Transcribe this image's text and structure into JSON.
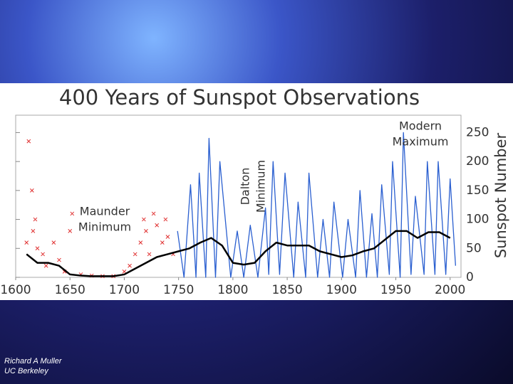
{
  "chart_data": {
    "type": "line",
    "title": "400 Years of Sunspot Observations",
    "y_label": "Sunspot Number",
    "xlim": [
      1600,
      2010
    ],
    "ylim": [
      0,
      280
    ],
    "xticks": [
      1600,
      1650,
      1700,
      1750,
      1800,
      1850,
      1900,
      1950,
      2000
    ],
    "yticks": [
      0,
      50,
      100,
      150,
      200,
      250
    ],
    "annotations": [
      {
        "lines": [
          "Maunder",
          "Minimum"
        ]
      },
      {
        "lines": [
          "Dalton",
          "Minimum"
        ]
      },
      {
        "lines": [
          "Modern",
          "Maximum"
        ]
      }
    ],
    "series": [
      {
        "mode": "scatter",
        "color": "#e03030",
        "x": [
          1610,
          1612,
          1615,
          1616,
          1618,
          1620,
          1625,
          1628,
          1635,
          1640,
          1645,
          1650,
          1652,
          1660,
          1670,
          1680,
          1690,
          1700,
          1705,
          1710,
          1715,
          1718,
          1720,
          1723,
          1727,
          1730,
          1735,
          1738,
          1740,
          1745
        ],
        "values": [
          60,
          235,
          150,
          80,
          100,
          50,
          40,
          20,
          60,
          30,
          10,
          80,
          110,
          5,
          3,
          2,
          2,
          10,
          20,
          40,
          60,
          100,
          80,
          40,
          110,
          90,
          60,
          100,
          70,
          40
        ]
      },
      {
        "mode": "line",
        "color": "#2a5fd0",
        "x": [
          1749,
          1755,
          1761,
          1766,
          1769,
          1775,
          1778,
          1784,
          1788,
          1798,
          1804,
          1810,
          1816,
          1823,
          1830,
          1833,
          1837,
          1843,
          1848,
          1856,
          1860,
          1867,
          1870,
          1878,
          1883,
          1889,
          1893,
          1901,
          1906,
          1913,
          1917,
          1923,
          1928,
          1933,
          1937,
          1944,
          1947,
          1954,
          1957,
          1964,
          1968,
          1976,
          1979,
          1986,
          1989,
          1996,
          2000,
          2005
        ],
        "values": [
          80,
          0,
          160,
          0,
          180,
          0,
          240,
          0,
          200,
          0,
          80,
          0,
          90,
          0,
          120,
          5,
          200,
          5,
          180,
          0,
          130,
          0,
          180,
          0,
          100,
          0,
          130,
          0,
          100,
          0,
          150,
          0,
          110,
          0,
          160,
          5,
          200,
          0,
          250,
          5,
          140,
          5,
          200,
          5,
          200,
          5,
          170,
          20
        ]
      },
      {
        "mode": "line",
        "color": "#000000",
        "x": [
          1610,
          1620,
          1630,
          1640,
          1650,
          1660,
          1670,
          1680,
          1690,
          1700,
          1710,
          1720,
          1730,
          1740,
          1750,
          1760,
          1770,
          1780,
          1790,
          1800,
          1810,
          1820,
          1830,
          1840,
          1850,
          1860,
          1870,
          1880,
          1890,
          1900,
          1910,
          1920,
          1930,
          1940,
          1950,
          1960,
          1970,
          1980,
          1990,
          2000
        ],
        "values": [
          40,
          25,
          25,
          20,
          5,
          3,
          2,
          2,
          2,
          5,
          15,
          25,
          35,
          40,
          45,
          50,
          60,
          68,
          55,
          25,
          22,
          25,
          45,
          60,
          55,
          55,
          55,
          45,
          40,
          35,
          38,
          45,
          50,
          65,
          80,
          80,
          68,
          78,
          78,
          68
        ]
      }
    ]
  },
  "footer": [
    "Richard A Muller",
    "UC Berkeley"
  ]
}
